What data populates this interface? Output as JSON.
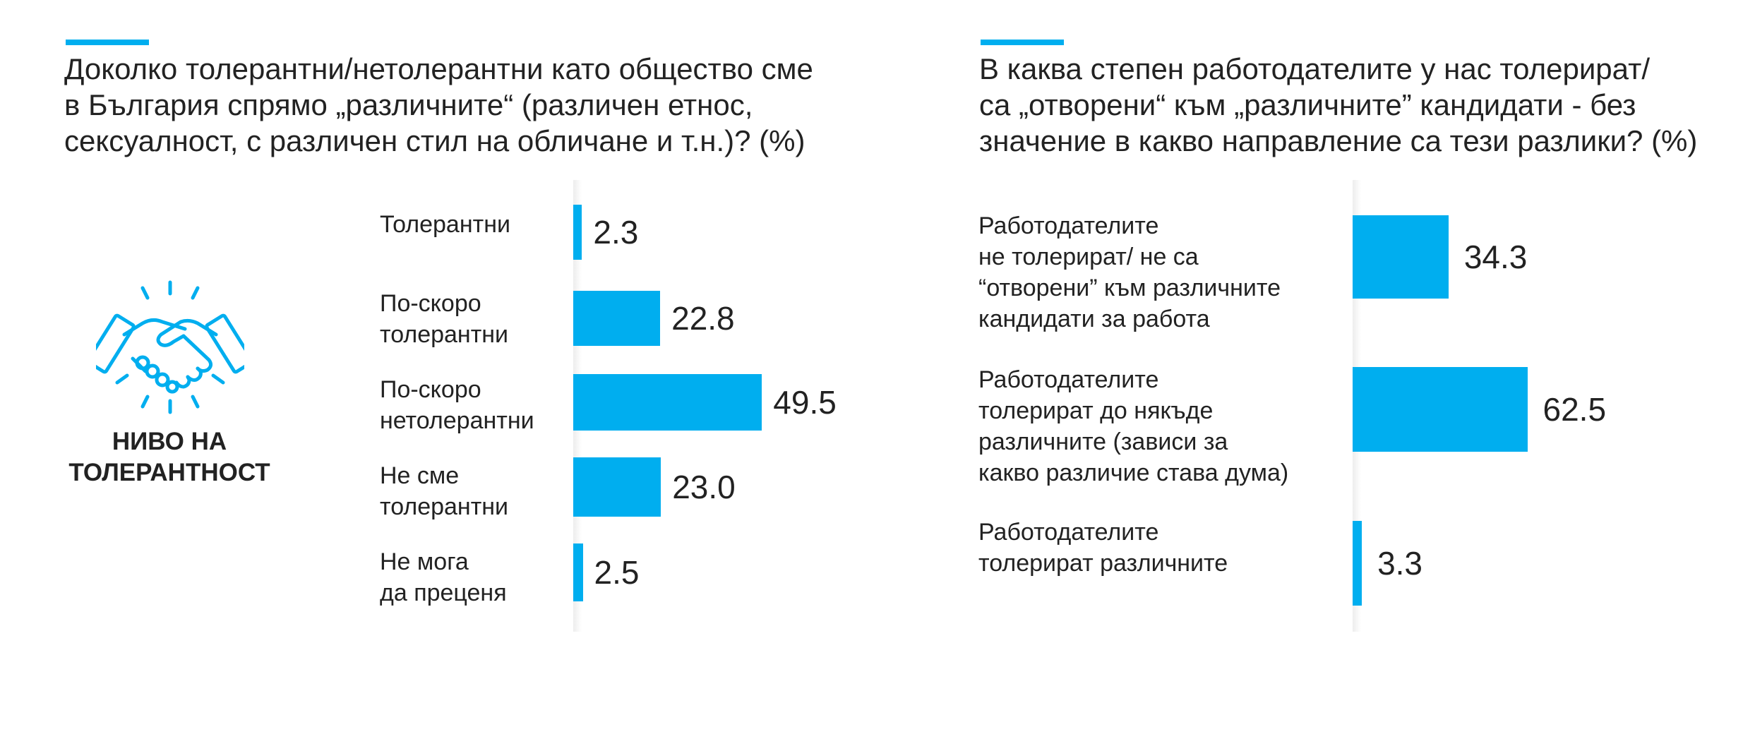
{
  "colors": {
    "accent": "#00aeef",
    "bar": "#00aeef",
    "text": "#222222"
  },
  "left": {
    "title": "Доколко толерантни/нетолерантни като общество сме\nв България спрямо „различните“ (различен етнос,\nсексуалност, с различен стил на обличане и т.н.)? (%)",
    "icon": {
      "name": "handshake-icon",
      "caption": "НИВО НА\nТОЛЕРАНТНОСТ"
    }
  },
  "right": {
    "title": "В каква степен работодателите у нас толерират/\nса „отворени“ към „различните” кандидати - без\nзначение в какво направление са тези разлики? (%)"
  },
  "chart_data": [
    {
      "type": "bar",
      "orientation": "horizontal",
      "title": "Доколко толерантни/нетолерантни като общество сме в България спрямо „различните“ (различен етнос, сексуалност, с различен стил на обличане и т.н.)? (%)",
      "categories": [
        "Толерантни",
        "По-скоро\nтолерантни",
        "По-скоро\nнетолерантни",
        "Не сме\nтолерантни",
        "Не мога\nда преценя"
      ],
      "values": [
        2.3,
        22.8,
        49.5,
        23.0,
        2.5
      ],
      "value_labels": [
        "2.3",
        "22.8",
        "49.5",
        "23.0",
        "2.5"
      ],
      "xlim": [
        0,
        100
      ],
      "grid": false,
      "legend": "none"
    },
    {
      "type": "bar",
      "orientation": "horizontal",
      "title": "В каква степен работодателите у нас толерират/ са „отворени“ към „различните” кандидати - без значение в какво направление са тези разлики? (%)",
      "categories": [
        "Работодателите\nне толерират/ не са\n“отворени” към различните\nкандидати за работа",
        "Работодателите\nтолерират до някъде\nразличните (зависи за\nкакво различие става дума)",
        "Работодателите\nтолерират различните"
      ],
      "values": [
        34.3,
        62.5,
        3.3
      ],
      "value_labels": [
        "34.3",
        "62.5",
        "3.3"
      ],
      "xlim": [
        0,
        100
      ],
      "grid": false,
      "legend": "none"
    }
  ]
}
